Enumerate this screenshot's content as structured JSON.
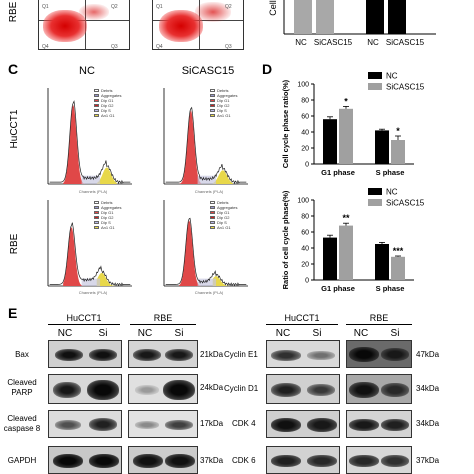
{
  "panel_a_top": {
    "row_label": "RBE",
    "quadrant_labels": [
      "Q1",
      "Q2",
      "Q4",
      "Q3"
    ]
  },
  "panel_b_top": {
    "ylabel": "Cell",
    "categories": [
      "NC",
      "SiCASC15",
      "NC",
      "SiCASC15"
    ]
  },
  "panel_c": {
    "letter": "C",
    "col_labels": [
      "NC",
      "SiCASC15"
    ],
    "row_labels": [
      "HuCCT1",
      "RBE"
    ],
    "legend_items": [
      "Debris",
      "Aggregates",
      "Dip G1",
      "Dip G2",
      "Dip S",
      "An1 G1"
    ],
    "axis_caption": "Channels (PI-A)"
  },
  "panel_d": {
    "letter": "D",
    "chart_data": [
      {
        "type": "bar",
        "ylabel": "Cell cycle phase ratio(%)",
        "categories": [
          "G1 phase",
          "S phase"
        ],
        "ylim": [
          0,
          100
        ],
        "yticks": [
          "0",
          "20",
          "40",
          "60",
          "80",
          "100"
        ],
        "legend_placement": "top-right",
        "series": [
          {
            "name": "NC",
            "color": "#000000",
            "values": [
              56,
              42
            ],
            "errors": [
              3,
              1.5
            ]
          },
          {
            "name": "SiCASC15",
            "color": "#a0a0a0",
            "values": [
              69,
              30
            ],
            "errors": [
              3,
              5
            ]
          }
        ],
        "significance": [
          "*",
          "*"
        ]
      },
      {
        "type": "bar",
        "ylabel": "Ratio of cell cycle phase(%)",
        "categories": [
          "G1 phase",
          "S phase"
        ],
        "ylim": [
          0,
          100
        ],
        "yticks": [
          "0",
          "20",
          "40",
          "60",
          "80",
          "100"
        ],
        "legend_placement": "top-right",
        "series": [
          {
            "name": "NC",
            "color": "#000000",
            "values": [
              53,
              45
            ],
            "errors": [
              3,
              2
            ]
          },
          {
            "name": "SiCASC15",
            "color": "#a0a0a0",
            "values": [
              68,
              29
            ],
            "errors": [
              3,
              1
            ]
          }
        ],
        "significance": [
          "**",
          "***"
        ]
      }
    ]
  },
  "panel_e": {
    "letter": "E",
    "left": {
      "groups": [
        "HuCCT1",
        "RBE"
      ],
      "lanes": [
        "NC",
        "Si",
        "NC",
        "Si"
      ],
      "rows": [
        {
          "label": "Bax",
          "size": "21kDa"
        },
        {
          "label": "Cleaved PARP",
          "size": "24kDa"
        },
        {
          "label": "Cleaved caspase 8",
          "size": "17kDa"
        },
        {
          "label": "GAPDH",
          "size": "37kDa"
        }
      ]
    },
    "right": {
      "groups": [
        "HuCCT1",
        "RBE"
      ],
      "lanes": [
        "NC",
        "Si",
        "NC",
        "Si"
      ],
      "rows": [
        {
          "label": "Cyclin E1",
          "size": "47kDa"
        },
        {
          "label": "Cyclin D1",
          "size": "34kDa"
        },
        {
          "label": "CDK 4",
          "size": "34kDa"
        },
        {
          "label": "CDK 6",
          "size": "37kDa"
        }
      ]
    }
  }
}
